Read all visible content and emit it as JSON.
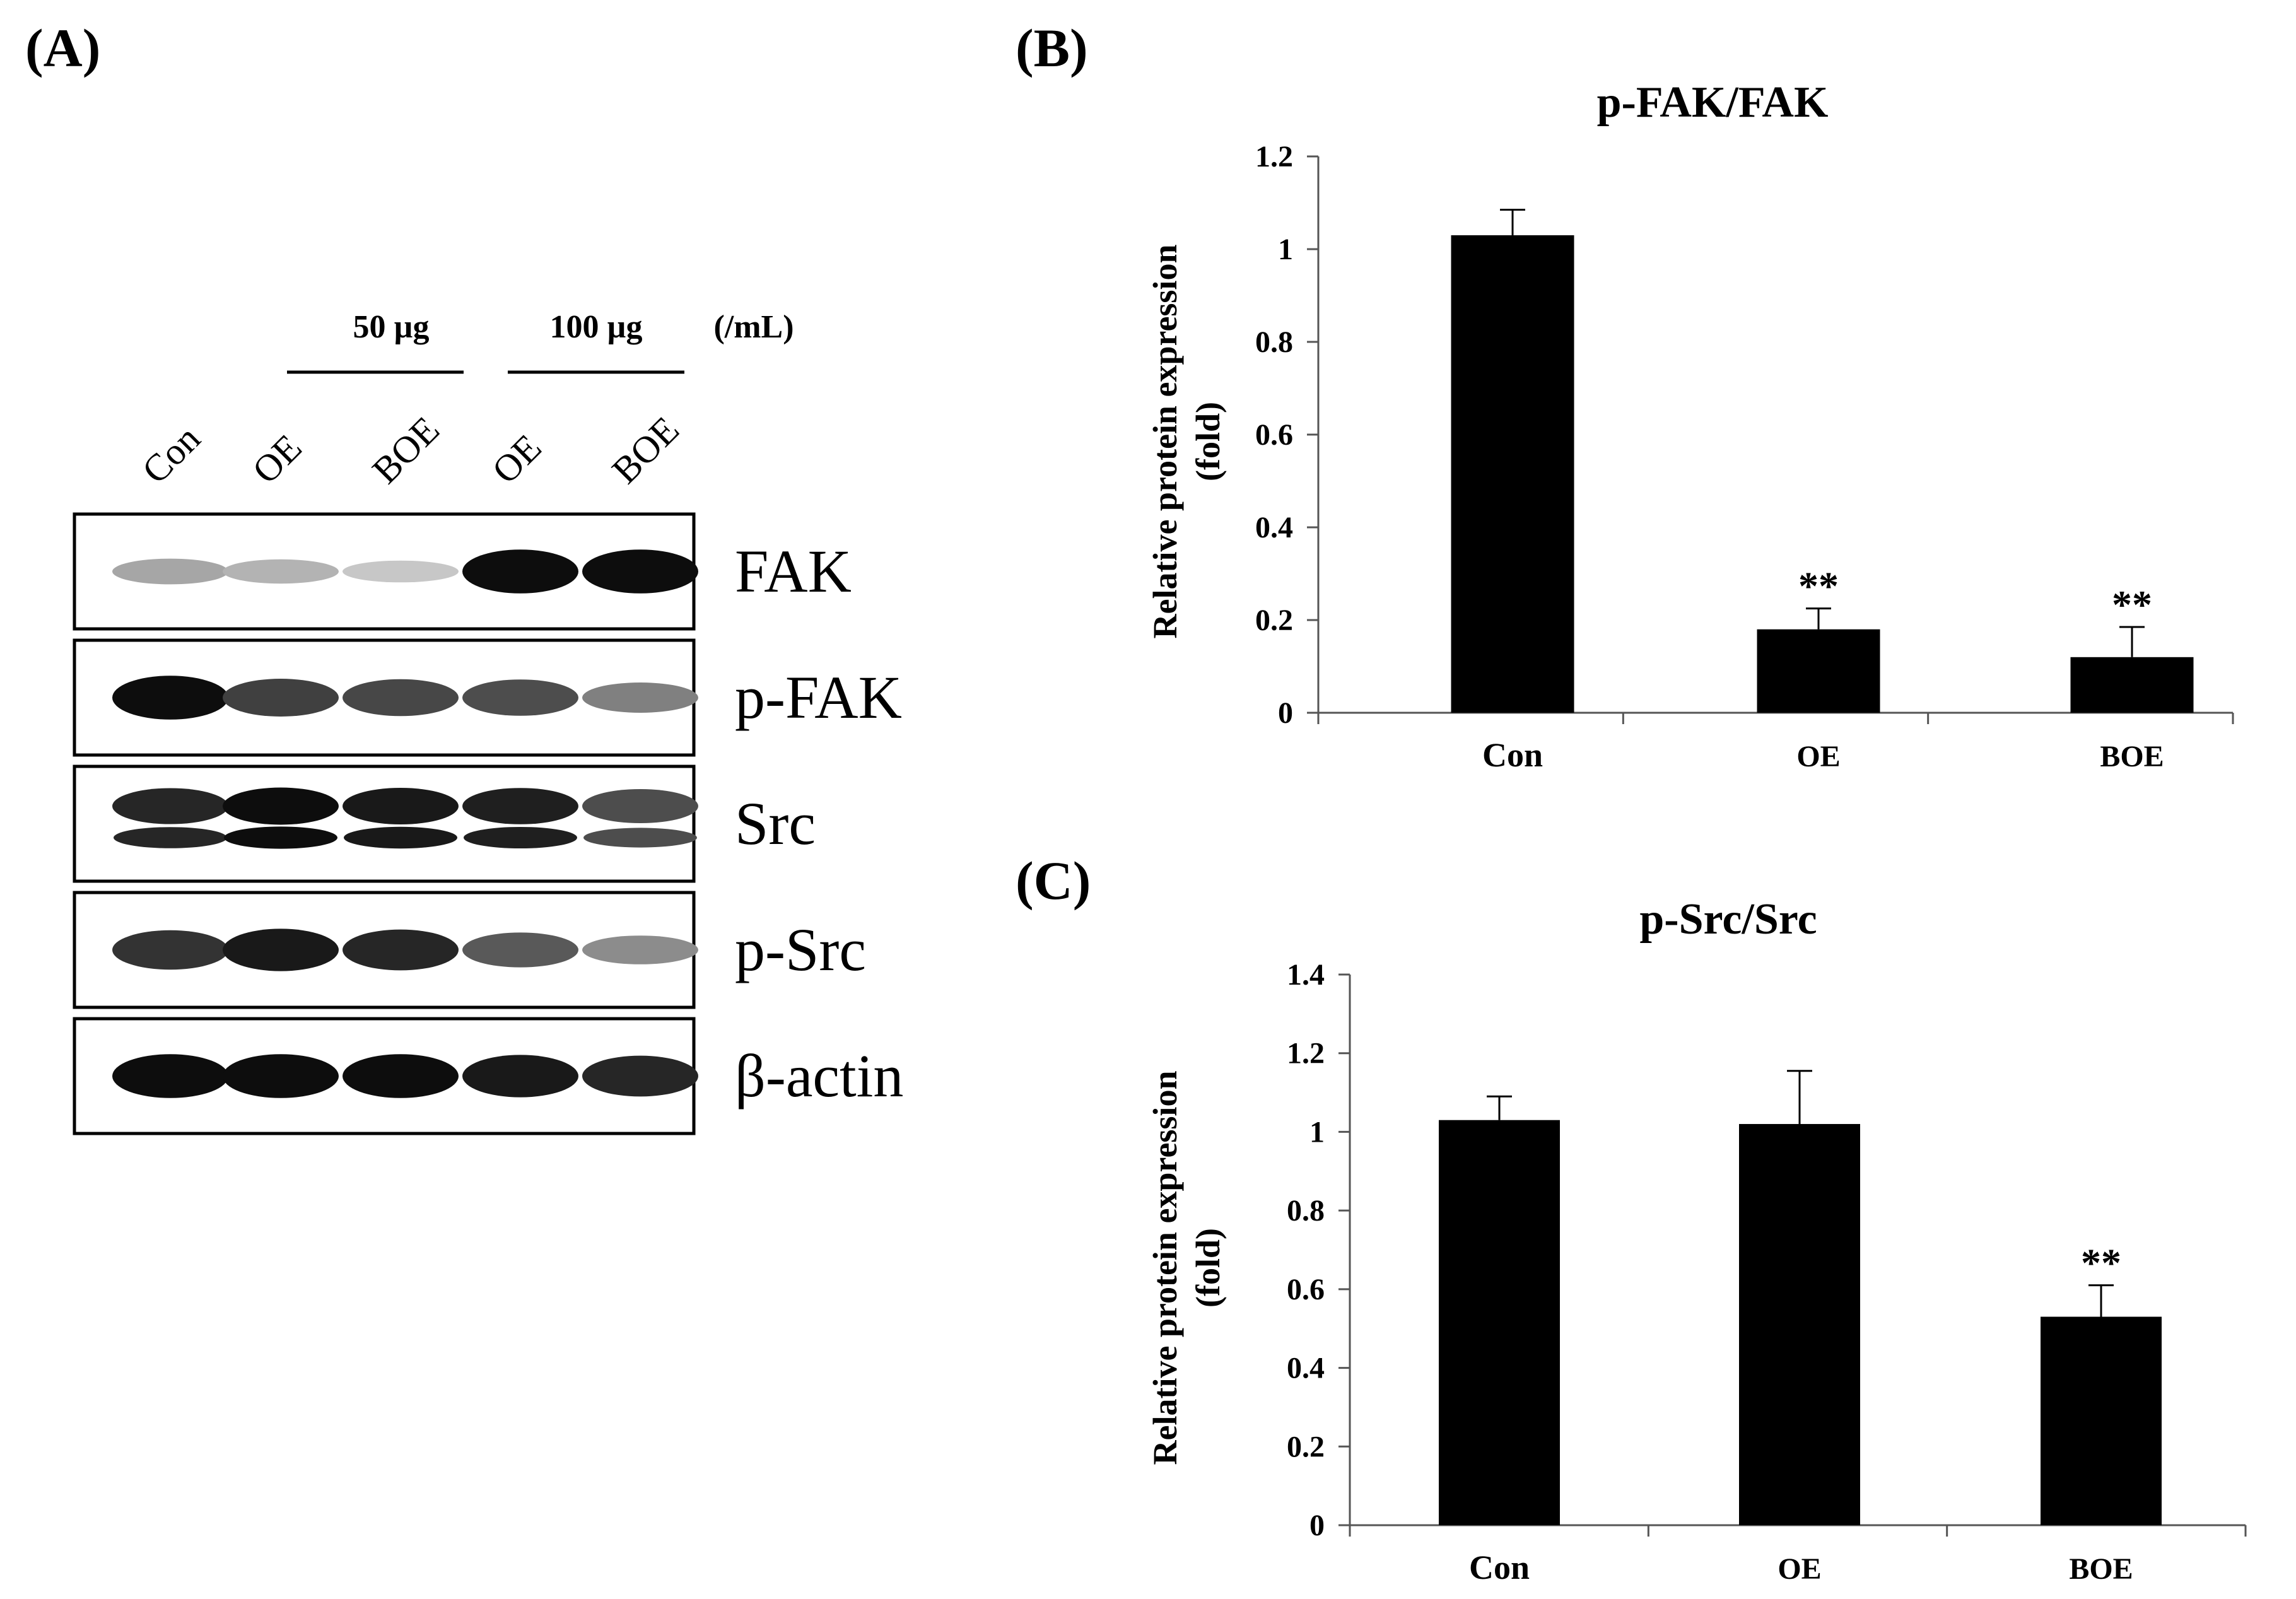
{
  "panels": {
    "a": "(A)",
    "b": "(B)",
    "c": "(C)"
  },
  "blot": {
    "dose_groups": [
      "50 µg",
      "100 µg"
    ],
    "unit": "(/mL)",
    "lanes": [
      "Con",
      "OE",
      "BOE",
      "OE",
      "BOE"
    ],
    "rows": [
      {
        "label": "FAK",
        "band_intensity": [
          0.35,
          0.3,
          0.22,
          0.95,
          0.95
        ],
        "double": false
      },
      {
        "label": "p-FAK",
        "band_intensity": [
          0.95,
          0.75,
          0.72,
          0.7,
          0.5
        ],
        "double": false
      },
      {
        "label": "Src",
        "band_intensity": [
          0.85,
          0.95,
          0.9,
          0.88,
          0.7
        ],
        "double": true
      },
      {
        "label": "p-Src",
        "band_intensity": [
          0.8,
          0.9,
          0.85,
          0.65,
          0.45
        ],
        "double": false
      },
      {
        "label": "β-actin",
        "band_intensity": [
          0.95,
          0.95,
          0.95,
          0.9,
          0.85
        ],
        "double": false
      }
    ]
  },
  "chart_data": [
    {
      "type": "bar",
      "title": "p-FAK/FAK",
      "ylabel_line1": "Relative protein expression",
      "ylabel_line2": "(fold)",
      "categories": [
        "Con",
        "OE",
        "BOE"
      ],
      "values": [
        1.03,
        0.18,
        0.12
      ],
      "errors": [
        0.055,
        0.045,
        0.065
      ],
      "significance": [
        "",
        "**",
        "**"
      ],
      "ylim": [
        0,
        1.2
      ],
      "yticks": [
        "0",
        "0.2",
        "0.4",
        "0.6",
        "0.8",
        "1",
        "1.2"
      ]
    },
    {
      "type": "bar",
      "title": "p-Src/Src",
      "ylabel_line1": "Relative protein expression",
      "ylabel_line2": "(fold)",
      "categories": [
        "Con",
        "OE",
        "BOE"
      ],
      "values": [
        1.03,
        1.02,
        0.53
      ],
      "errors": [
        0.06,
        0.135,
        0.08
      ],
      "significance": [
        "",
        "",
        "**"
      ],
      "ylim": [
        0,
        1.4
      ],
      "yticks": [
        "0",
        "0.2",
        "0.4",
        "0.6",
        "0.8",
        "1",
        "1.2",
        "1.4"
      ]
    }
  ]
}
